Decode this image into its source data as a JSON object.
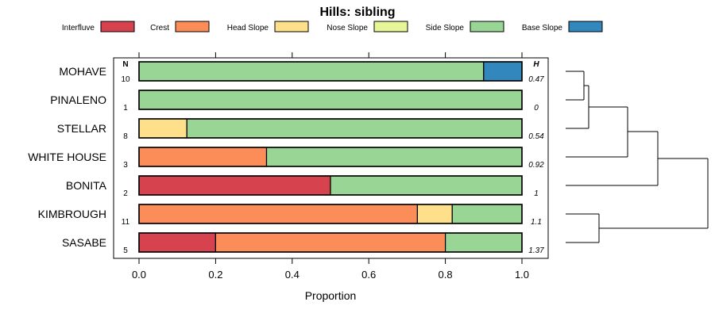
{
  "chart_data": {
    "type": "bar",
    "stacked": true,
    "orientation": "horizontal",
    "title": "Hills: sibling",
    "xlabel": "Proportion",
    "ylabel": "",
    "xlim": [
      0,
      1
    ],
    "xticks": [
      "0.0",
      "0.2",
      "0.4",
      "0.6",
      "0.8",
      "1.0"
    ],
    "legend_position": "top",
    "n_header": "N",
    "h_header": "H",
    "legend": [
      {
        "name": "Interfluve",
        "color": "#D7424F"
      },
      {
        "name": "Crest",
        "color": "#FC8D59"
      },
      {
        "name": "Head Slope",
        "color": "#FEE08B"
      },
      {
        "name": "Nose Slope",
        "color": "#E6F598"
      },
      {
        "name": "Side Slope",
        "color": "#99D594"
      },
      {
        "name": "Base Slope",
        "color": "#3288BD"
      }
    ],
    "categories": [
      "MOHAVE",
      "PINALENO",
      "STELLAR",
      "WHITE HOUSE",
      "BONITA",
      "KIMBROUGH",
      "SASABE"
    ],
    "n": [
      "10",
      "1",
      "8",
      "3",
      "2",
      "11",
      "5"
    ],
    "h": [
      "0.47",
      "0",
      "0.54",
      "0.92",
      "1",
      "1.1",
      "1.37"
    ],
    "series": [
      {
        "name": "Interfluve",
        "values": [
          0,
          0,
          0,
          0,
          0.5,
          0,
          0.2
        ]
      },
      {
        "name": "Crest",
        "values": [
          0,
          0,
          0,
          0.333,
          0,
          0.727,
          0.6
        ]
      },
      {
        "name": "Head Slope",
        "values": [
          0,
          0,
          0.125,
          0,
          0,
          0.091,
          0
        ]
      },
      {
        "name": "Nose Slope",
        "values": [
          0,
          0,
          0,
          0,
          0,
          0,
          0
        ]
      },
      {
        "name": "Side Slope",
        "values": [
          0.9,
          1.0,
          0.875,
          0.667,
          0.5,
          0.182,
          0.2
        ]
      },
      {
        "name": "Base Slope",
        "values": [
          0.1,
          0,
          0,
          0,
          0,
          0,
          0
        ]
      }
    ],
    "dendrogram": {
      "merges": [
        {
          "left": "MOHAVE",
          "right": "PINALENO",
          "height": 0.1
        },
        {
          "left": "MOHAVE+PINALENO",
          "right": "STELLAR",
          "height": 0.12
        },
        {
          "left": "MOHAVE+PINALENO+STELLAR",
          "right": "WHITE HOUSE",
          "height": 0.3
        },
        {
          "left": "MOHAVE+PINALENO+STELLAR+WHITE HOUSE",
          "right": "BONITA",
          "height": 0.5
        },
        {
          "left": "KIMBROUGH",
          "right": "SASABE",
          "height": 0.22
        },
        {
          "left": "CLUSTER_A",
          "right": "KIMBROUGH+SASABE",
          "height": 1.0
        }
      ]
    }
  }
}
